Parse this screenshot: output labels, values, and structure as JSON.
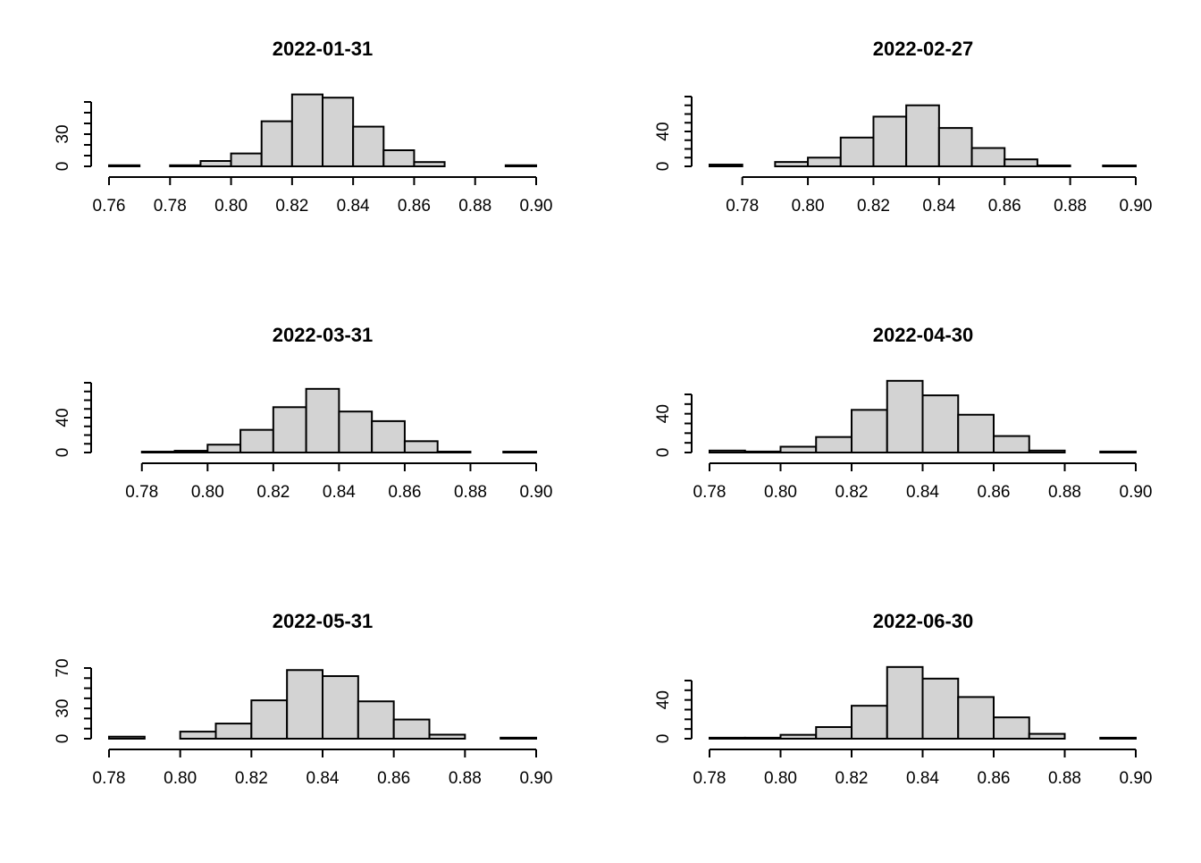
{
  "chart_data": [
    {
      "type": "bar",
      "title": "2022-01-31",
      "bin_edges": [
        0.76,
        0.77,
        0.78,
        0.79,
        0.8,
        0.81,
        0.82,
        0.83,
        0.84,
        0.85,
        0.86,
        0.87,
        0.88,
        0.89,
        0.9
      ],
      "values": [
        1,
        0,
        1,
        5,
        12,
        42,
        67,
        64,
        37,
        15,
        4,
        0,
        0,
        1
      ],
      "x_ticks": [
        "0.76",
        "0.78",
        "0.80",
        "0.82",
        "0.84",
        "0.86",
        "0.88",
        "0.90"
      ],
      "y_ticks": [
        "0",
        "30"
      ],
      "xlim": [
        0.76,
        0.9
      ],
      "ylim": [
        0,
        60
      ],
      "xlabel": "",
      "ylabel": ""
    },
    {
      "type": "bar",
      "title": "2022-02-27",
      "bin_edges": [
        0.77,
        0.78,
        0.79,
        0.8,
        0.81,
        0.82,
        0.83,
        0.84,
        0.85,
        0.86,
        0.87,
        0.88,
        0.89,
        0.9
      ],
      "values": [
        2,
        0,
        5,
        10,
        33,
        57,
        70,
        44,
        21,
        8,
        1,
        0,
        1
      ],
      "x_ticks": [
        "0.78",
        "0.80",
        "0.82",
        "0.84",
        "0.86",
        "0.88",
        "0.90"
      ],
      "y_ticks": [
        "0",
        "40"
      ],
      "xlim": [
        0.77,
        0.9
      ],
      "ylim": [
        0,
        80
      ],
      "xlabel": "",
      "ylabel": ""
    },
    {
      "type": "bar",
      "title": "2022-03-31",
      "bin_edges": [
        0.77,
        0.78,
        0.79,
        0.8,
        0.81,
        0.82,
        0.83,
        0.84,
        0.85,
        0.86,
        0.87,
        0.88,
        0.89,
        0.9
      ],
      "values": [
        0,
        1,
        2,
        9,
        26,
        52,
        73,
        47,
        36,
        13,
        1,
        0,
        1
      ],
      "x_ticks": [
        "0.78",
        "0.80",
        "0.82",
        "0.84",
        "0.86",
        "0.88",
        "0.90"
      ],
      "y_ticks": [
        "0",
        "40"
      ],
      "xlim": [
        0.77,
        0.9
      ],
      "ylim": [
        0,
        80
      ],
      "xlabel": "",
      "ylabel": ""
    },
    {
      "type": "bar",
      "title": "2022-04-30",
      "bin_edges": [
        0.78,
        0.79,
        0.8,
        0.81,
        0.82,
        0.83,
        0.84,
        0.85,
        0.86,
        0.87,
        0.88,
        0.89,
        0.9
      ],
      "values": [
        2,
        1,
        6,
        16,
        44,
        74,
        59,
        39,
        17,
        2,
        0,
        1
      ],
      "x_ticks": [
        "0.78",
        "0.80",
        "0.82",
        "0.84",
        "0.86",
        "0.88",
        "0.90"
      ],
      "y_ticks": [
        "0",
        "40"
      ],
      "xlim": [
        0.78,
        0.9
      ],
      "ylim": [
        0,
        60
      ],
      "xlabel": "",
      "ylabel": ""
    },
    {
      "type": "bar",
      "title": "2022-05-31",
      "bin_edges": [
        0.78,
        0.79,
        0.8,
        0.81,
        0.82,
        0.83,
        0.84,
        0.85,
        0.86,
        0.87,
        0.88,
        0.89,
        0.9
      ],
      "values": [
        2,
        0,
        7,
        15,
        38,
        68,
        62,
        37,
        19,
        4,
        0,
        1
      ],
      "x_ticks": [
        "0.78",
        "0.80",
        "0.82",
        "0.84",
        "0.86",
        "0.88",
        "0.90"
      ],
      "y_ticks": [
        "0",
        "30",
        "70"
      ],
      "xlim": [
        0.78,
        0.9
      ],
      "ylim": [
        0,
        70
      ],
      "xlabel": "",
      "ylabel": ""
    },
    {
      "type": "bar",
      "title": "2022-06-30",
      "bin_edges": [
        0.78,
        0.79,
        0.8,
        0.81,
        0.82,
        0.83,
        0.84,
        0.85,
        0.86,
        0.87,
        0.88,
        0.89,
        0.9
      ],
      "values": [
        1,
        1,
        4,
        12,
        34,
        74,
        62,
        43,
        22,
        5,
        0,
        1
      ],
      "x_ticks": [
        "0.78",
        "0.80",
        "0.82",
        "0.84",
        "0.86",
        "0.88",
        "0.90"
      ],
      "y_ticks": [
        "0",
        "40"
      ],
      "xlim": [
        0.78,
        0.9
      ],
      "ylim": [
        0,
        60
      ],
      "xlabel": "",
      "ylabel": ""
    }
  ]
}
